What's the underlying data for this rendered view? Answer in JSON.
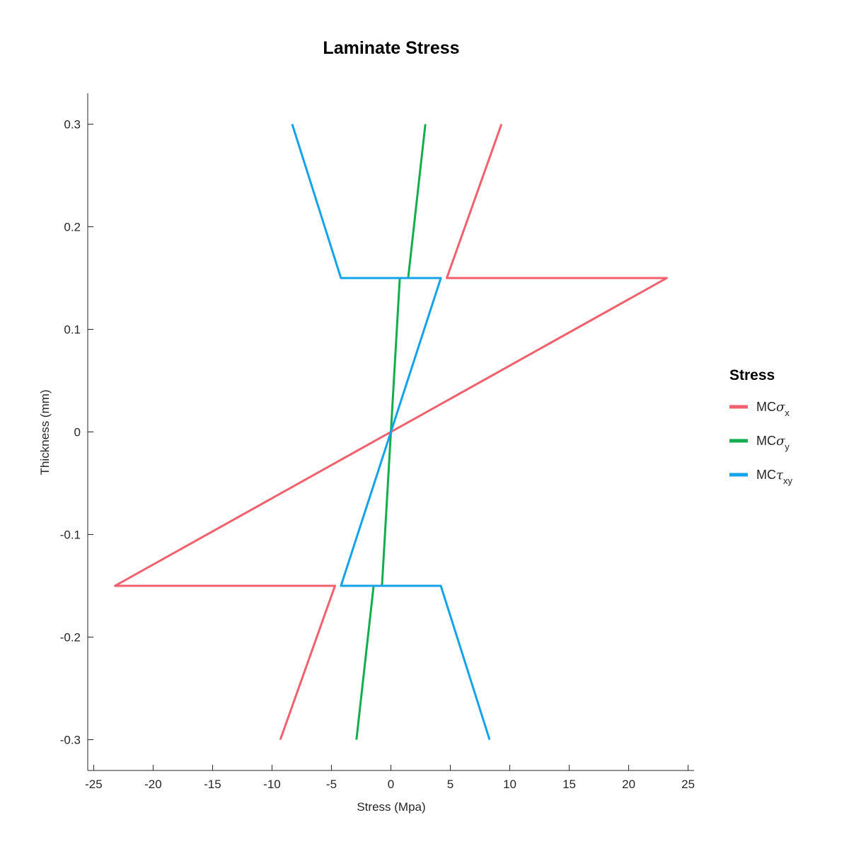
{
  "chart_data": {
    "type": "line",
    "title": "Laminate Stress",
    "xlabel": "Stress (Mpa)",
    "ylabel": "Thickness (mm)",
    "xlim": [
      -25.5,
      25.5
    ],
    "ylim": [
      -0.33,
      0.33
    ],
    "xticks": [
      -25,
      -20,
      -15,
      -10,
      -5,
      0,
      5,
      10,
      15,
      20,
      25
    ],
    "xtick_labels": [
      "-25",
      "-20",
      "-15",
      "-10",
      "-5",
      "0",
      "5",
      "10",
      "15",
      "20",
      "25"
    ],
    "yticks": [
      0.3,
      0.2,
      0.1,
      0,
      -0.1,
      -0.2,
      -0.3
    ],
    "ytick_labels": [
      "0.3",
      "0.2",
      "0.1",
      "0",
      "-0.1",
      "-0.2",
      "-0.3"
    ],
    "grid": false,
    "legend": {
      "title": "Stress",
      "placement": "right-outside",
      "entries": [
        {
          "prefix": "MC",
          "symbol": "σ",
          "subscript": "x"
        },
        {
          "prefix": "MC",
          "symbol": "σ",
          "subscript": "y"
        },
        {
          "prefix": "MC",
          "symbol": "τ",
          "subscript": "xy"
        }
      ]
    },
    "series": [
      {
        "color": "#f0606d",
        "points": [
          [
            9.3,
            0.3
          ],
          [
            4.7,
            0.15
          ],
          [
            23.2,
            0.15
          ],
          [
            -23.2,
            -0.15
          ],
          [
            -4.7,
            -0.15
          ],
          [
            -9.3,
            -0.3
          ]
        ]
      },
      {
        "color": "#12ad4c",
        "points": [
          [
            2.9,
            0.3
          ],
          [
            1.45,
            0.15
          ],
          [
            0.75,
            0.15
          ],
          [
            0,
            0
          ],
          [
            -0.75,
            -0.15
          ],
          [
            -1.45,
            -0.15
          ],
          [
            -2.9,
            -0.3
          ]
        ]
      },
      {
        "color": "#14a3ea",
        "points": [
          [
            -8.3,
            0.3
          ],
          [
            -4.2,
            0.15
          ],
          [
            4.2,
            0.15
          ],
          [
            0,
            0
          ],
          [
            -4.2,
            -0.15
          ],
          [
            4.2,
            -0.15
          ],
          [
            8.3,
            -0.3
          ]
        ]
      }
    ]
  }
}
